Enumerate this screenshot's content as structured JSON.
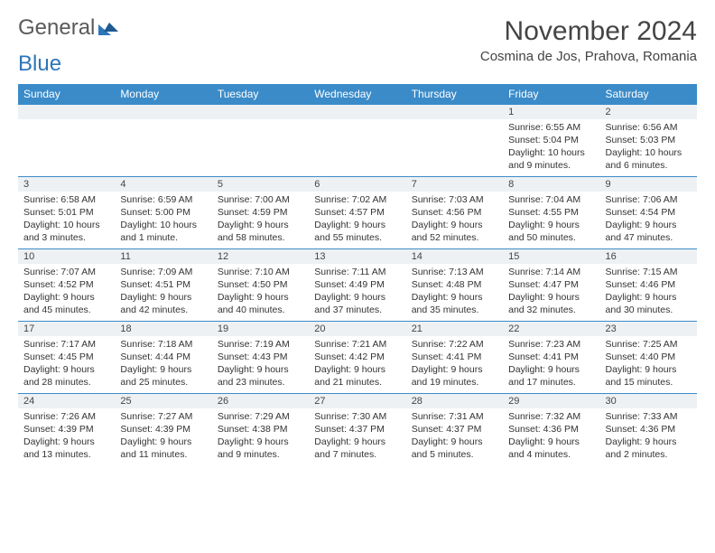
{
  "logo": {
    "word1": "General",
    "word2": "Blue"
  },
  "title": "November 2024",
  "location": "Cosmina de Jos, Prahova, Romania",
  "days_of_week": [
    "Sunday",
    "Monday",
    "Tuesday",
    "Wednesday",
    "Thursday",
    "Friday",
    "Saturday"
  ],
  "colors": {
    "header_bg": "#3b8bc9",
    "header_text": "#ffffff",
    "daynum_bg": "#eef1f3",
    "border": "#3b8bc9",
    "body_text": "#333333",
    "title_text": "#444444",
    "logo_gray": "#5a5a5a",
    "logo_blue": "#2d76ba"
  },
  "weeks": [
    [
      null,
      null,
      null,
      null,
      null,
      {
        "n": "1",
        "sunrise": "Sunrise: 6:55 AM",
        "sunset": "Sunset: 5:04 PM",
        "daylight": "Daylight: 10 hours and 9 minutes."
      },
      {
        "n": "2",
        "sunrise": "Sunrise: 6:56 AM",
        "sunset": "Sunset: 5:03 PM",
        "daylight": "Daylight: 10 hours and 6 minutes."
      }
    ],
    [
      {
        "n": "3",
        "sunrise": "Sunrise: 6:58 AM",
        "sunset": "Sunset: 5:01 PM",
        "daylight": "Daylight: 10 hours and 3 minutes."
      },
      {
        "n": "4",
        "sunrise": "Sunrise: 6:59 AM",
        "sunset": "Sunset: 5:00 PM",
        "daylight": "Daylight: 10 hours and 1 minute."
      },
      {
        "n": "5",
        "sunrise": "Sunrise: 7:00 AM",
        "sunset": "Sunset: 4:59 PM",
        "daylight": "Daylight: 9 hours and 58 minutes."
      },
      {
        "n": "6",
        "sunrise": "Sunrise: 7:02 AM",
        "sunset": "Sunset: 4:57 PM",
        "daylight": "Daylight: 9 hours and 55 minutes."
      },
      {
        "n": "7",
        "sunrise": "Sunrise: 7:03 AM",
        "sunset": "Sunset: 4:56 PM",
        "daylight": "Daylight: 9 hours and 52 minutes."
      },
      {
        "n": "8",
        "sunrise": "Sunrise: 7:04 AM",
        "sunset": "Sunset: 4:55 PM",
        "daylight": "Daylight: 9 hours and 50 minutes."
      },
      {
        "n": "9",
        "sunrise": "Sunrise: 7:06 AM",
        "sunset": "Sunset: 4:54 PM",
        "daylight": "Daylight: 9 hours and 47 minutes."
      }
    ],
    [
      {
        "n": "10",
        "sunrise": "Sunrise: 7:07 AM",
        "sunset": "Sunset: 4:52 PM",
        "daylight": "Daylight: 9 hours and 45 minutes."
      },
      {
        "n": "11",
        "sunrise": "Sunrise: 7:09 AM",
        "sunset": "Sunset: 4:51 PM",
        "daylight": "Daylight: 9 hours and 42 minutes."
      },
      {
        "n": "12",
        "sunrise": "Sunrise: 7:10 AM",
        "sunset": "Sunset: 4:50 PM",
        "daylight": "Daylight: 9 hours and 40 minutes."
      },
      {
        "n": "13",
        "sunrise": "Sunrise: 7:11 AM",
        "sunset": "Sunset: 4:49 PM",
        "daylight": "Daylight: 9 hours and 37 minutes."
      },
      {
        "n": "14",
        "sunrise": "Sunrise: 7:13 AM",
        "sunset": "Sunset: 4:48 PM",
        "daylight": "Daylight: 9 hours and 35 minutes."
      },
      {
        "n": "15",
        "sunrise": "Sunrise: 7:14 AM",
        "sunset": "Sunset: 4:47 PM",
        "daylight": "Daylight: 9 hours and 32 minutes."
      },
      {
        "n": "16",
        "sunrise": "Sunrise: 7:15 AM",
        "sunset": "Sunset: 4:46 PM",
        "daylight": "Daylight: 9 hours and 30 minutes."
      }
    ],
    [
      {
        "n": "17",
        "sunrise": "Sunrise: 7:17 AM",
        "sunset": "Sunset: 4:45 PM",
        "daylight": "Daylight: 9 hours and 28 minutes."
      },
      {
        "n": "18",
        "sunrise": "Sunrise: 7:18 AM",
        "sunset": "Sunset: 4:44 PM",
        "daylight": "Daylight: 9 hours and 25 minutes."
      },
      {
        "n": "19",
        "sunrise": "Sunrise: 7:19 AM",
        "sunset": "Sunset: 4:43 PM",
        "daylight": "Daylight: 9 hours and 23 minutes."
      },
      {
        "n": "20",
        "sunrise": "Sunrise: 7:21 AM",
        "sunset": "Sunset: 4:42 PM",
        "daylight": "Daylight: 9 hours and 21 minutes."
      },
      {
        "n": "21",
        "sunrise": "Sunrise: 7:22 AM",
        "sunset": "Sunset: 4:41 PM",
        "daylight": "Daylight: 9 hours and 19 minutes."
      },
      {
        "n": "22",
        "sunrise": "Sunrise: 7:23 AM",
        "sunset": "Sunset: 4:41 PM",
        "daylight": "Daylight: 9 hours and 17 minutes."
      },
      {
        "n": "23",
        "sunrise": "Sunrise: 7:25 AM",
        "sunset": "Sunset: 4:40 PM",
        "daylight": "Daylight: 9 hours and 15 minutes."
      }
    ],
    [
      {
        "n": "24",
        "sunrise": "Sunrise: 7:26 AM",
        "sunset": "Sunset: 4:39 PM",
        "daylight": "Daylight: 9 hours and 13 minutes."
      },
      {
        "n": "25",
        "sunrise": "Sunrise: 7:27 AM",
        "sunset": "Sunset: 4:39 PM",
        "daylight": "Daylight: 9 hours and 11 minutes."
      },
      {
        "n": "26",
        "sunrise": "Sunrise: 7:29 AM",
        "sunset": "Sunset: 4:38 PM",
        "daylight": "Daylight: 9 hours and 9 minutes."
      },
      {
        "n": "27",
        "sunrise": "Sunrise: 7:30 AM",
        "sunset": "Sunset: 4:37 PM",
        "daylight": "Daylight: 9 hours and 7 minutes."
      },
      {
        "n": "28",
        "sunrise": "Sunrise: 7:31 AM",
        "sunset": "Sunset: 4:37 PM",
        "daylight": "Daylight: 9 hours and 5 minutes."
      },
      {
        "n": "29",
        "sunrise": "Sunrise: 7:32 AM",
        "sunset": "Sunset: 4:36 PM",
        "daylight": "Daylight: 9 hours and 4 minutes."
      },
      {
        "n": "30",
        "sunrise": "Sunrise: 7:33 AM",
        "sunset": "Sunset: 4:36 PM",
        "daylight": "Daylight: 9 hours and 2 minutes."
      }
    ]
  ]
}
